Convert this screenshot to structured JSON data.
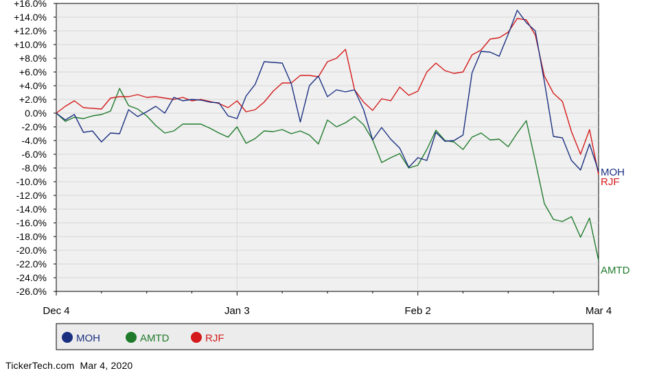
{
  "chart_data": {
    "type": "line",
    "y_unit": "%",
    "ylim": [
      -26,
      16
    ],
    "y_ticks": [
      "+16.0%",
      "+14.0%",
      "+12.0%",
      "+10.0%",
      "+8.0%",
      "+6.0%",
      "+4.0%",
      "+2.0%",
      "0.0%",
      "-2.0%",
      "-4.0%",
      "-6.0%",
      "-8.0%",
      "-10.0%",
      "-12.0%",
      "-14.0%",
      "-16.0%",
      "-18.0%",
      "-20.0%",
      "-22.0%",
      "-24.0%",
      "-26.0%"
    ],
    "x_ticks": [
      "Dec 4",
      "Jan 3",
      "Feb 2",
      "Mar 4"
    ],
    "grid": true,
    "legend_position": "bottom",
    "series": [
      {
        "name": "MOH",
        "color": "#1a2f80",
        "values": [
          0.0,
          -1.0,
          -0.2,
          -2.8,
          -2.6,
          -4.2,
          -2.9,
          -3.0,
          0.5,
          -0.5,
          0.2,
          1.0,
          0.0,
          2.3,
          1.8,
          2.0,
          1.9,
          1.6,
          1.5,
          -0.4,
          -0.8,
          2.5,
          4.2,
          7.5,
          7.4,
          7.3,
          4.3,
          -1.3,
          4.0,
          5.4,
          2.4,
          3.4,
          3.1,
          3.4,
          0.5,
          -3.9,
          -2.1,
          -3.8,
          -5.1,
          -7.9,
          -6.5,
          -6.9,
          -2.8,
          -4.1,
          -4.0,
          -3.2,
          5.9,
          9.0,
          8.9,
          8.3,
          11.5,
          15.0,
          13.2,
          12.0,
          4.6,
          -3.4,
          -3.6,
          -6.9,
          -8.3,
          -4.5,
          -8.5
        ]
      },
      {
        "name": "AMTD",
        "color": "#1f7a2b",
        "values": [
          0.0,
          -1.2,
          -0.6,
          -0.8,
          -0.4,
          -0.2,
          0.3,
          3.6,
          1.1,
          0.6,
          -0.4,
          -1.8,
          -2.9,
          -2.6,
          -1.6,
          -1.6,
          -1.6,
          -2.2,
          -2.9,
          -3.5,
          -2.0,
          -4.4,
          -3.7,
          -2.6,
          -2.7,
          -2.4,
          -3.0,
          -2.6,
          -3.2,
          -4.5,
          -1.0,
          -2.0,
          -1.4,
          -0.5,
          -1.7,
          -3.9,
          -7.2,
          -6.5,
          -5.9,
          -8.0,
          -7.6,
          -5.3,
          -2.5,
          -4.0,
          -4.2,
          -5.3,
          -3.5,
          -2.9,
          -3.9,
          -3.8,
          -4.9,
          -2.9,
          -1.1,
          -7.0,
          -13.2,
          -15.5,
          -15.8,
          -15.1,
          -18.1,
          -15.3,
          -21.5
        ]
      },
      {
        "name": "RJF",
        "color": "#d41a1a",
        "values": [
          0.0,
          1.0,
          1.8,
          0.8,
          0.7,
          0.6,
          2.2,
          2.4,
          2.4,
          2.7,
          2.3,
          2.4,
          2.2,
          2.0,
          2.3,
          1.8,
          2.0,
          1.7,
          1.4,
          0.8,
          1.8,
          0.2,
          0.5,
          1.6,
          3.2,
          4.4,
          4.4,
          5.5,
          5.5,
          5.3,
          7.5,
          8.0,
          9.3,
          3.4,
          1.6,
          0.4,
          2.1,
          1.8,
          3.8,
          2.6,
          3.2,
          6.0,
          7.3,
          6.2,
          5.8,
          6.0,
          8.5,
          9.2,
          10.8,
          11.0,
          11.8,
          13.8,
          13.6,
          11.4,
          5.4,
          2.9,
          1.7,
          -2.7,
          -6.0,
          -2.4,
          -9.0
        ]
      }
    ]
  },
  "legend": {
    "items": [
      {
        "label": "MOH",
        "color": "#1a2f80"
      },
      {
        "label": "AMTD",
        "color": "#1f7a2b"
      },
      {
        "label": "RJF",
        "color": "#d41a1a"
      }
    ]
  },
  "footer": {
    "source": "TickerTech.com",
    "date": "Mar 4, 2020"
  }
}
